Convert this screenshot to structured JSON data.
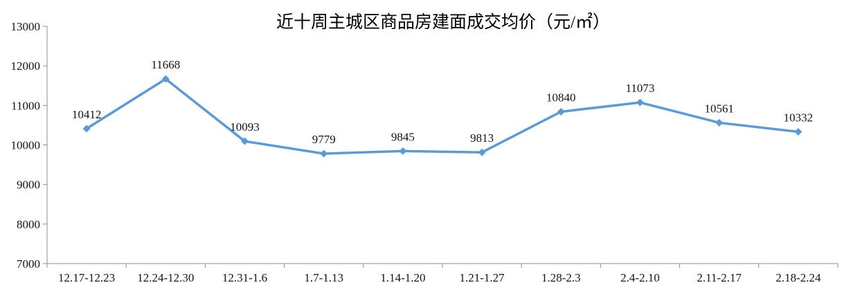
{
  "chart_data": {
    "type": "line",
    "title": "近十周主城区商品房建面成交均价（元/㎡）",
    "categories": [
      "12.17-12.23",
      "12.24-12.30",
      "12.31-1.6",
      "1.7-1.13",
      "1.14-1.20",
      "1.21-1.27",
      "1.28-2.3",
      "2.4-2.10",
      "2.11-2.17",
      "2.18-2.24"
    ],
    "values": [
      10412,
      11668,
      10093,
      9779,
      9845,
      9813,
      10840,
      11073,
      10561,
      10332
    ],
    "xlabel": "",
    "ylabel": "",
    "ylim": [
      7000,
      13000
    ],
    "ytick_step": 1000,
    "ytick_labels": [
      "7000",
      "8000",
      "9000",
      "10000",
      "11000",
      "12000",
      "13000"
    ],
    "grid": false,
    "legend_position": "none",
    "data_labels_shown": true,
    "marker_shape": "diamond",
    "colors": {
      "line": "#5B9BD5",
      "marker": "#5B9BD5",
      "axis": "#8C8C8C",
      "text": "#141414",
      "background": "#FFFFFF"
    }
  }
}
